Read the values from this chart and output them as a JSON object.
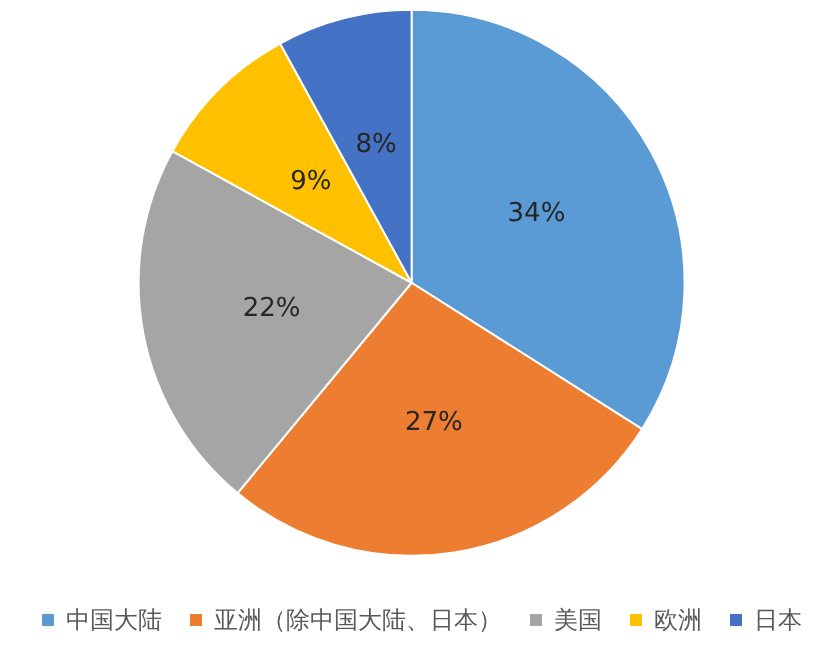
{
  "chart_data": {
    "type": "pie",
    "categories": [
      "中国大陆",
      "亚洲（除中国大陆、日本）",
      "美国",
      "欧洲",
      "日本"
    ],
    "values": [
      34,
      27,
      22,
      9,
      8
    ],
    "value_labels": [
      "34%",
      "27%",
      "22%",
      "9%",
      "8%"
    ],
    "colors": [
      "#5b9bd5",
      "#ed7d31",
      "#a5a5a5",
      "#ffc000",
      "#4472c4"
    ],
    "legend": "bottom"
  }
}
